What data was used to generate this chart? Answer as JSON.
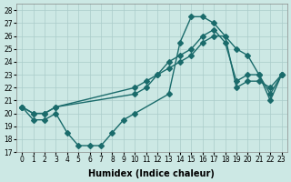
{
  "xlabel": "Humidex (Indice chaleur)",
  "xlim": [
    -0.5,
    23.5
  ],
  "ylim": [
    17,
    28.5
  ],
  "yticks": [
    17,
    18,
    19,
    20,
    21,
    22,
    23,
    24,
    25,
    26,
    27,
    28
  ],
  "xticks": [
    0,
    1,
    2,
    3,
    4,
    5,
    6,
    7,
    8,
    9,
    10,
    11,
    12,
    13,
    14,
    15,
    16,
    17,
    18,
    19,
    20,
    21,
    22,
    23
  ],
  "bg_color": "#cce8e4",
  "grid_color": "#aaccca",
  "line_color": "#1a6b6b",
  "line1_x": [
    0,
    1,
    2,
    3,
    4,
    5,
    6,
    7,
    8,
    9,
    10,
    13,
    14,
    15,
    16,
    17,
    19,
    20,
    21,
    22,
    23
  ],
  "line1_y": [
    20.5,
    19.5,
    19.5,
    20.0,
    18.5,
    17.5,
    17.5,
    17.5,
    18.5,
    19.5,
    20.0,
    21.5,
    25.5,
    27.5,
    27.5,
    27.0,
    25.0,
    24.5,
    23.0,
    21.0,
    23.0
  ],
  "line2_x": [
    0,
    1,
    2,
    3,
    10,
    11,
    12,
    13,
    14,
    15,
    16,
    17,
    18,
    19,
    20,
    21,
    22,
    23
  ],
  "line2_y": [
    20.5,
    20.0,
    20.0,
    20.5,
    22.0,
    22.5,
    23.0,
    23.5,
    24.0,
    24.5,
    25.5,
    26.0,
    26.0,
    22.0,
    22.5,
    22.5,
    22.0,
    23.0
  ],
  "line3_x": [
    0,
    1,
    2,
    3,
    10,
    11,
    12,
    13,
    14,
    15,
    16,
    17,
    18,
    19,
    20,
    21,
    22,
    23
  ],
  "line3_y": [
    20.5,
    20.0,
    20.0,
    20.5,
    21.5,
    22.0,
    23.0,
    24.0,
    24.5,
    25.0,
    26.0,
    26.5,
    25.5,
    22.5,
    23.0,
    23.0,
    21.5,
    23.0
  ],
  "markersize": 3,
  "linewidth": 1.0,
  "tick_fontsize": 5.5,
  "xlabel_fontsize": 7
}
